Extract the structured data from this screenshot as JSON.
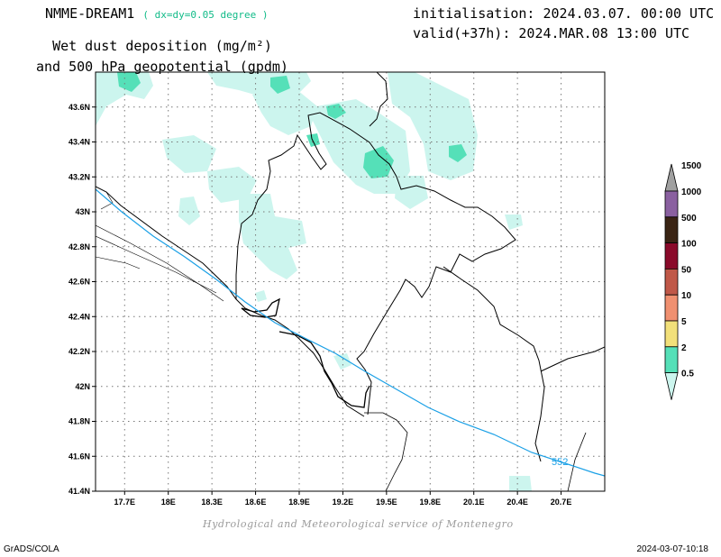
{
  "header": {
    "model": "NMME-DREAM1",
    "resolution": "( dx=dy=0.05 degree )",
    "field_line1": "Wet dust deposition (mg/m²)",
    "field_line2": "and 500 hPa geopotential (gpdm)",
    "init": "initialisation: 2024.03.07. 00:00 UTC",
    "valid": "valid(+37h): 2024.MAR.08 13:00 UTC"
  },
  "map": {
    "lon_min": 17.5,
    "lon_max": 21.0,
    "lat_min": 41.4,
    "lat_max": 43.8,
    "lon_ticks": [
      "17.7E",
      "18E",
      "18.3E",
      "18.6E",
      "18.9E",
      "19.2E",
      "19.5E",
      "19.8E",
      "20.1E",
      "20.4E",
      "20.7E"
    ],
    "lat_ticks": [
      "41.4N",
      "41.6N",
      "41.8N",
      "42N",
      "42.2N",
      "42.4N",
      "42.6N",
      "42.8N",
      "43N",
      "43.2N",
      "43.4N",
      "43.6N"
    ],
    "grid": true,
    "contour_label": "552",
    "contour_color": "#1aa0e6",
    "land_line_color": "#000000"
  },
  "colorbar": {
    "levels": [
      "0.5",
      "2",
      "5",
      "10",
      "50",
      "100",
      "500",
      "1000",
      "1500"
    ],
    "colors": [
      "#ccf5ee",
      "#55e0b8",
      "#f2e07a",
      "#f09070",
      "#c05848",
      "#8a0a2a",
      "#3a2414",
      "#8a60a0",
      "#a0a0a0"
    ]
  },
  "footer": {
    "credit": "Hydrological and Meteorological service of Montenegro",
    "left": "GrADS/COLA",
    "right": "2024-03-07-10:18"
  }
}
